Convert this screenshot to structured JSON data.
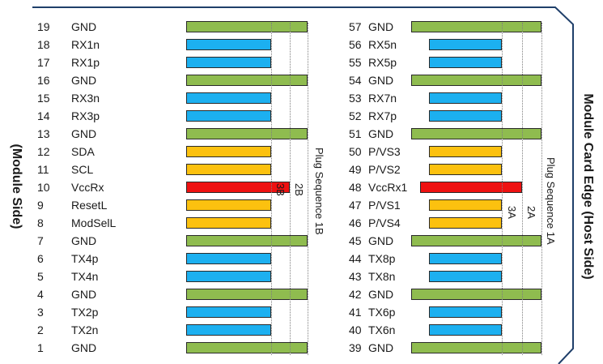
{
  "labels": {
    "module_side": "(Module Side)",
    "host_side": "Module Card Edge (Host Side)"
  },
  "colors": {
    "GND": "#8fbc4f",
    "signal": "#1cb0f0",
    "control": "#fcc10f",
    "power": "#ee1111"
  },
  "left_pins": [
    {
      "num": "19",
      "name": "GND",
      "kind": "GND"
    },
    {
      "num": "18",
      "name": "RX1n",
      "kind": "signal"
    },
    {
      "num": "17",
      "name": "RX1p",
      "kind": "signal"
    },
    {
      "num": "16",
      "name": "GND",
      "kind": "GND"
    },
    {
      "num": "15",
      "name": "RX3n",
      "kind": "signal"
    },
    {
      "num": "14",
      "name": "RX3p",
      "kind": "signal"
    },
    {
      "num": "13",
      "name": "GND",
      "kind": "GND"
    },
    {
      "num": "12",
      "name": "SDA",
      "kind": "control"
    },
    {
      "num": "11",
      "name": "SCL",
      "kind": "control"
    },
    {
      "num": "10",
      "name": "VccRx",
      "kind": "power"
    },
    {
      "num": "9",
      "name": "ResetL",
      "kind": "control"
    },
    {
      "num": "8",
      "name": "ModSelL",
      "kind": "control"
    },
    {
      "num": "7",
      "name": "GND",
      "kind": "GND"
    },
    {
      "num": "6",
      "name": "TX4p",
      "kind": "signal"
    },
    {
      "num": "5",
      "name": "TX4n",
      "kind": "signal"
    },
    {
      "num": "4",
      "name": "GND",
      "kind": "GND"
    },
    {
      "num": "3",
      "name": "TX2p",
      "kind": "signal"
    },
    {
      "num": "2",
      "name": "TX2n",
      "kind": "signal"
    },
    {
      "num": "1",
      "name": "GND",
      "kind": "GND"
    }
  ],
  "right_pins": [
    {
      "num": "57",
      "name": "GND",
      "kind": "GND"
    },
    {
      "num": "56",
      "name": "RX5n",
      "kind": "signal"
    },
    {
      "num": "55",
      "name": "RX5p",
      "kind": "signal"
    },
    {
      "num": "54",
      "name": "GND",
      "kind": "GND"
    },
    {
      "num": "53",
      "name": "RX7n",
      "kind": "signal"
    },
    {
      "num": "52",
      "name": "RX7p",
      "kind": "signal"
    },
    {
      "num": "51",
      "name": "GND",
      "kind": "GND"
    },
    {
      "num": "50",
      "name": "P/VS3",
      "kind": "control"
    },
    {
      "num": "49",
      "name": "P/VS2",
      "kind": "control"
    },
    {
      "num": "48",
      "name": "VccRx1",
      "kind": "power"
    },
    {
      "num": "47",
      "name": "P/VS1",
      "kind": "control"
    },
    {
      "num": "46",
      "name": "P/VS4",
      "kind": "control"
    },
    {
      "num": "45",
      "name": "GND",
      "kind": "GND"
    },
    {
      "num": "44",
      "name": "TX8p",
      "kind": "signal"
    },
    {
      "num": "43",
      "name": "TX8n",
      "kind": "signal"
    },
    {
      "num": "42",
      "name": "GND",
      "kind": "GND"
    },
    {
      "num": "41",
      "name": "TX6p",
      "kind": "signal"
    },
    {
      "num": "40",
      "name": "TX6n",
      "kind": "signal"
    },
    {
      "num": "39",
      "name": "GND",
      "kind": "GND"
    }
  ],
  "sequence_labels": {
    "left_1": "Plug Sequence 1B",
    "left_2": "2B",
    "left_3": "3B",
    "right_1": "Plug Sequence 1A",
    "right_2": "2A",
    "right_3": "3A"
  }
}
